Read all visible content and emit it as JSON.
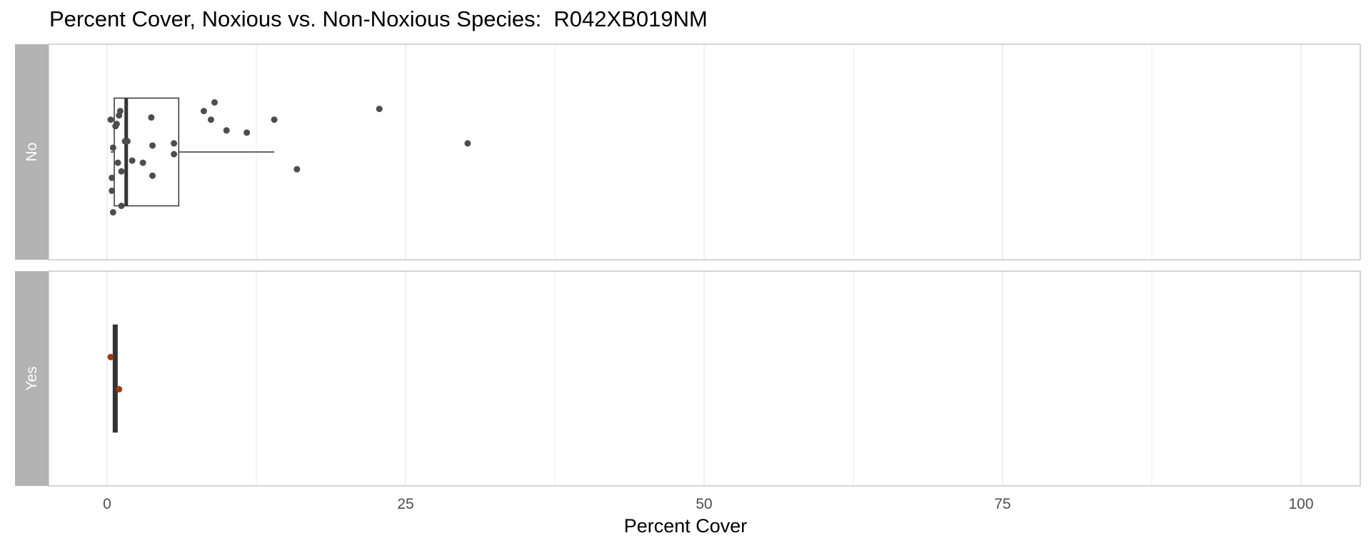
{
  "chart_data": {
    "type": "boxplot",
    "title": "Percent Cover, Noxious vs. Non-Noxious Species:  R042XB019NM",
    "xlabel": "Percent Cover",
    "ylabel": "",
    "xlim": [
      -5,
      105
    ],
    "x_ticks": [
      0,
      25,
      50,
      75,
      100
    ],
    "x_tick_labels": [
      "0",
      "25",
      "50",
      "75",
      "100"
    ],
    "grid": true,
    "legend": "none",
    "facet_strip_color": "#b3b3b3",
    "panels": [
      {
        "label": "No",
        "point_color": "#4d4d4d",
        "box": {
          "min": 0.3,
          "q1": 0.6,
          "median": 1.6,
          "q3": 6.0,
          "max": 14.0
        },
        "points": [
          {
            "x": 0.3,
            "y": 0.15
          },
          {
            "x": 0.5,
            "y": 0.02
          },
          {
            "x": 0.4,
            "y": -0.12
          },
          {
            "x": 0.4,
            "y": -0.18
          },
          {
            "x": 0.5,
            "y": -0.28
          },
          {
            "x": 0.7,
            "y": 0.12
          },
          {
            "x": 0.8,
            "y": 0.13
          },
          {
            "x": 0.9,
            "y": -0.05
          },
          {
            "x": 1.0,
            "y": 0.17
          },
          {
            "x": 1.1,
            "y": 0.19
          },
          {
            "x": 1.2,
            "y": -0.09
          },
          {
            "x": 1.2,
            "y": -0.25
          },
          {
            "x": 1.5,
            "y": 0.05
          },
          {
            "x": 1.7,
            "y": 0.05
          },
          {
            "x": 2.1,
            "y": -0.04
          },
          {
            "x": 3.0,
            "y": -0.05
          },
          {
            "x": 3.7,
            "y": 0.16
          },
          {
            "x": 3.8,
            "y": 0.03
          },
          {
            "x": 3.8,
            "y": -0.11
          },
          {
            "x": 5.6,
            "y": 0.04
          },
          {
            "x": 5.6,
            "y": -0.01
          },
          {
            "x": 8.1,
            "y": 0.19
          },
          {
            "x": 8.7,
            "y": 0.15
          },
          {
            "x": 9.0,
            "y": 0.23
          },
          {
            "x": 10.0,
            "y": 0.1
          },
          {
            "x": 11.7,
            "y": 0.09
          },
          {
            "x": 14.0,
            "y": 0.15
          },
          {
            "x": 15.9,
            "y": -0.08
          },
          {
            "x": 22.8,
            "y": 0.2
          },
          {
            "x": 30.2,
            "y": 0.04
          }
        ]
      },
      {
        "label": "Yes",
        "point_color": "#9e3a0e",
        "box": {
          "min": 0.5,
          "q1": 0.5,
          "median": 0.7,
          "q3": 0.8,
          "max": 0.8
        },
        "points": [
          {
            "x": 0.3,
            "y": 0.1
          },
          {
            "x": 1.0,
            "y": -0.05
          }
        ]
      }
    ]
  }
}
